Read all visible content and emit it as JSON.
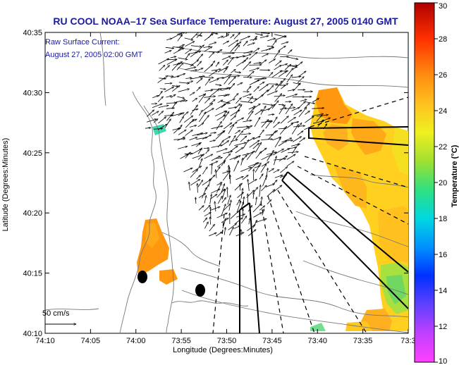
{
  "title": "RU COOL  NOAA–17  Sea Surface Temperature:  August 27, 2005 0140 GMT",
  "inset": {
    "line1": "Raw Surface Current:",
    "line2": "August 27, 2005 02:00 GMT"
  },
  "axes": {
    "xlabel": "Longitude (Degrees:Minutes)",
    "ylabel": "Latitude (Degrees:Minutes)",
    "xticks": [
      "74:10",
      "74:05",
      "74:00",
      "73:55",
      "73:50",
      "73:45",
      "73:40",
      "73:35",
      "73:3"
    ],
    "yticks": [
      "40:35",
      "40:30",
      "40:25",
      "40:20",
      "40:15",
      "40:10"
    ]
  },
  "colorbar": {
    "label": "Temperature (°C)",
    "ticks": [
      "30",
      "28",
      "26",
      "24",
      "22",
      "20",
      "18",
      "16",
      "14",
      "12",
      "10"
    ],
    "min": 10,
    "max": 30
  },
  "scale_label": "50 cm/s",
  "colors": {
    "title": "#1a1aa0",
    "coast": "#777777",
    "vectors": "#000000"
  }
}
